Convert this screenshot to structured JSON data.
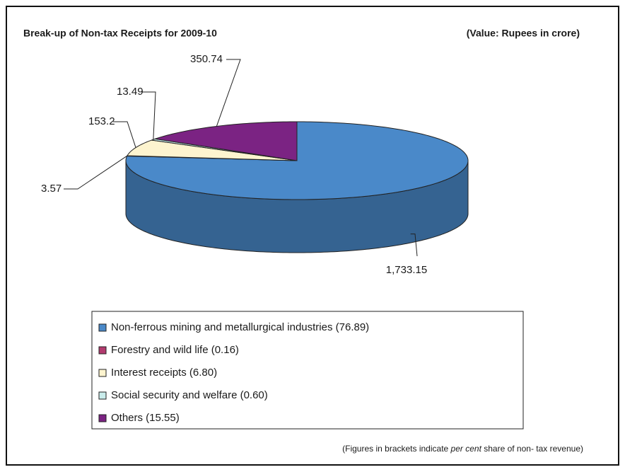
{
  "chart_data": {
    "type": "pie",
    "title": "Break-up of Non-tax Receipts for 2009-10",
    "subtitle": "(Value: Rupees in crore)",
    "categories": [
      "Non-ferrous mining and metallurgical industries (76.89)",
      "Forestry and wild life (0.16)",
      "Interest receipts (6.80)",
      "Social security and welfare (0.60)",
      "Others (15.55)"
    ],
    "values": [
      1733.15,
      3.57,
      153.2,
      13.49,
      350.74
    ],
    "value_labels": [
      "1,733.15",
      "3.57",
      "153.2",
      "13.49",
      "350.74"
    ],
    "colors": [
      "#4a89c9",
      "#b23a6e",
      "#fdf4cf",
      "#c9eceb",
      "#7b2383"
    ],
    "note": [
      "(Figures in brackets indicate ",
      "per cent",
      " share of non- tax revenue)"
    ]
  }
}
